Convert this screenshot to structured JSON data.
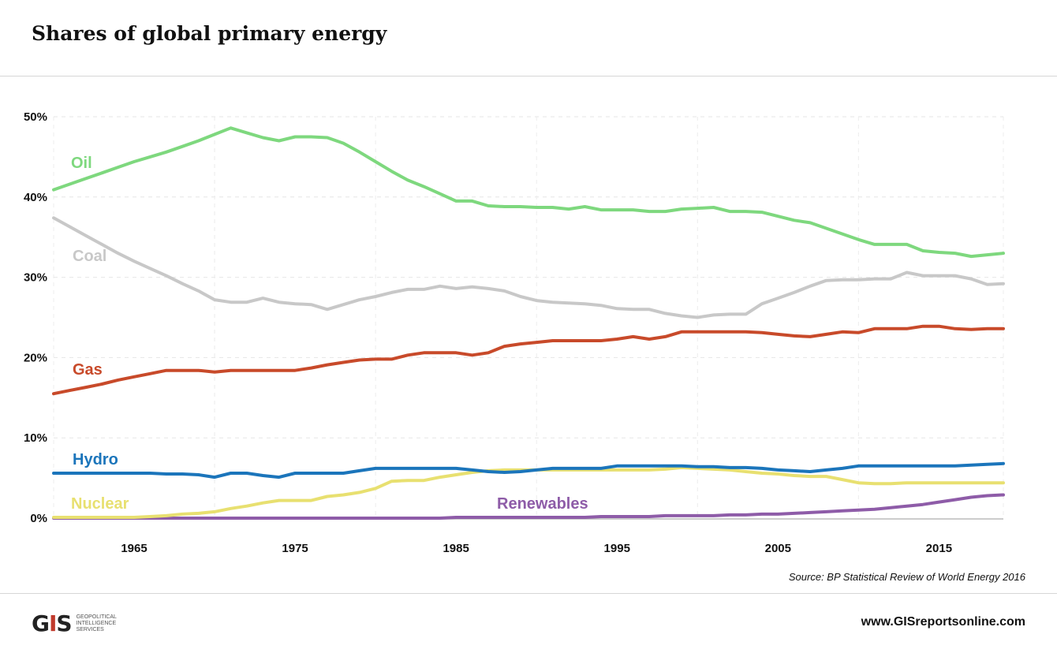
{
  "header": {
    "title": "Shares of global primary energy"
  },
  "footer": {
    "source": "Source: BP Statistical Review of World Energy 2016",
    "url": "www.GISreportsonline.com",
    "logo_mark": "GIS",
    "logo_text": [
      "GEOPOLITICAL",
      "INTELLIGENCE",
      "SERVICES"
    ]
  },
  "chart_data": {
    "type": "line",
    "title": "Shares of global primary energy",
    "xlabel": "",
    "ylabel": "",
    "xlim": [
      1960,
      2019
    ],
    "ylim": [
      0,
      50
    ],
    "x_ticks": [
      1965,
      1975,
      1985,
      1995,
      2005,
      2015
    ],
    "y_ticks": [
      0,
      10,
      20,
      30,
      40,
      50
    ],
    "y_tick_labels": [
      "0%",
      "10%",
      "20%",
      "30%",
      "40%",
      "50%"
    ],
    "grid": true,
    "legend": "inline labels",
    "x": [
      1960,
      1961,
      1962,
      1963,
      1964,
      1965,
      1966,
      1967,
      1968,
      1969,
      1970,
      1971,
      1972,
      1973,
      1974,
      1975,
      1976,
      1977,
      1978,
      1979,
      1980,
      1981,
      1982,
      1983,
      1984,
      1985,
      1986,
      1987,
      1988,
      1989,
      1990,
      1991,
      1992,
      1993,
      1994,
      1995,
      1996,
      1997,
      1998,
      1999,
      2000,
      2001,
      2002,
      2003,
      2004,
      2005,
      2006,
      2007,
      2008,
      2009,
      2010,
      2011,
      2012,
      2013,
      2014,
      2015,
      2016,
      2017,
      2018,
      2019
    ],
    "series": [
      {
        "name": "Oil",
        "color": "#7ed87e",
        "values": [
          40.9,
          41.6,
          42.3,
          43.0,
          43.7,
          44.4,
          45.0,
          45.6,
          46.3,
          47.0,
          47.8,
          48.6,
          48.0,
          47.4,
          47.0,
          47.5,
          47.5,
          47.4,
          46.7,
          45.6,
          44.4,
          43.2,
          42.1,
          41.3,
          40.4,
          39.5,
          39.5,
          38.9,
          38.8,
          38.8,
          38.7,
          38.7,
          38.5,
          38.8,
          38.4,
          38.4,
          38.4,
          38.2,
          38.2,
          38.5,
          38.6,
          38.7,
          38.2,
          38.2,
          38.1,
          37.6,
          37.1,
          36.8,
          36.1,
          35.4,
          34.7,
          34.1,
          34.1,
          34.1,
          33.3,
          33.1,
          33.0,
          32.6,
          32.8,
          33.0
        ]
      },
      {
        "name": "Coal",
        "color": "#c8c8c8",
        "values": [
          37.4,
          36.3,
          35.2,
          34.1,
          33.0,
          32.0,
          31.1,
          30.2,
          29.2,
          28.3,
          27.2,
          26.9,
          26.9,
          27.4,
          26.9,
          26.7,
          26.6,
          26.0,
          26.6,
          27.2,
          27.6,
          28.1,
          28.5,
          28.5,
          28.9,
          28.6,
          28.8,
          28.6,
          28.3,
          27.6,
          27.1,
          26.9,
          26.8,
          26.7,
          26.5,
          26.1,
          26.0,
          26.0,
          25.5,
          25.2,
          25.0,
          25.3,
          25.4,
          25.4,
          26.7,
          27.4,
          28.1,
          28.9,
          29.6,
          29.7,
          29.7,
          29.8,
          29.8,
          30.6,
          30.2,
          30.2,
          30.2,
          29.8,
          29.1,
          29.2
        ]
      },
      {
        "name": "Gas",
        "color": "#c84a2a",
        "values": [
          15.5,
          15.9,
          16.3,
          16.7,
          17.2,
          17.6,
          18.0,
          18.4,
          18.4,
          18.4,
          18.2,
          18.4,
          18.4,
          18.4,
          18.4,
          18.4,
          18.7,
          19.1,
          19.4,
          19.7,
          19.8,
          19.8,
          20.3,
          20.6,
          20.6,
          20.6,
          20.3,
          20.6,
          21.4,
          21.7,
          21.9,
          22.1,
          22.1,
          22.1,
          22.1,
          22.3,
          22.6,
          22.3,
          22.6,
          23.2,
          23.2,
          23.2,
          23.2,
          23.2,
          23.1,
          22.9,
          22.7,
          22.6,
          22.9,
          23.2,
          23.1,
          23.6,
          23.6,
          23.6,
          23.9,
          23.9,
          23.6,
          23.5,
          23.6,
          23.6
        ]
      },
      {
        "name": "Hydro",
        "color": "#1b75bb",
        "values": [
          5.6,
          5.6,
          5.6,
          5.6,
          5.6,
          5.6,
          5.6,
          5.5,
          5.5,
          5.4,
          5.1,
          5.6,
          5.6,
          5.3,
          5.1,
          5.6,
          5.6,
          5.6,
          5.6,
          5.9,
          6.2,
          6.2,
          6.2,
          6.2,
          6.2,
          6.2,
          6.0,
          5.8,
          5.7,
          5.8,
          6.0,
          6.2,
          6.2,
          6.2,
          6.2,
          6.5,
          6.5,
          6.5,
          6.5,
          6.5,
          6.4,
          6.4,
          6.3,
          6.3,
          6.2,
          6.0,
          5.9,
          5.8,
          6.0,
          6.2,
          6.5,
          6.5,
          6.5,
          6.5,
          6.5,
          6.5,
          6.5,
          6.6,
          6.7,
          6.8
        ]
      },
      {
        "name": "Nuclear",
        "color": "#e8e070",
        "values": [
          0.1,
          0.1,
          0.1,
          0.1,
          0.1,
          0.1,
          0.2,
          0.3,
          0.5,
          0.6,
          0.8,
          1.2,
          1.5,
          1.9,
          2.2,
          2.2,
          2.2,
          2.7,
          2.9,
          3.2,
          3.7,
          4.6,
          4.7,
          4.7,
          5.1,
          5.4,
          5.7,
          5.9,
          6.0,
          6.0,
          6.0,
          6.0,
          6.0,
          6.0,
          6.0,
          6.0,
          6.0,
          6.0,
          6.1,
          6.3,
          6.2,
          6.1,
          6.0,
          5.8,
          5.6,
          5.5,
          5.3,
          5.2,
          5.2,
          4.8,
          4.4,
          4.3,
          4.3,
          4.4,
          4.4,
          4.4,
          4.4,
          4.4,
          4.4,
          4.4
        ]
      },
      {
        "name": "Renewables",
        "color": "#8e5ca8",
        "values": [
          0.0,
          0.0,
          0.0,
          0.0,
          0.0,
          0.0,
          0.0,
          0.0,
          0.0,
          0.0,
          0.0,
          0.0,
          0.0,
          0.0,
          0.0,
          0.0,
          0.0,
          0.0,
          0.0,
          0.0,
          0.0,
          0.0,
          0.0,
          0.0,
          0.0,
          0.1,
          0.1,
          0.1,
          0.1,
          0.1,
          0.1,
          0.1,
          0.1,
          0.1,
          0.2,
          0.2,
          0.2,
          0.2,
          0.3,
          0.3,
          0.3,
          0.3,
          0.4,
          0.4,
          0.5,
          0.5,
          0.6,
          0.7,
          0.8,
          0.9,
          1.0,
          1.1,
          1.3,
          1.5,
          1.7,
          2.0,
          2.3,
          2.6,
          2.8,
          2.9
        ]
      }
    ]
  }
}
